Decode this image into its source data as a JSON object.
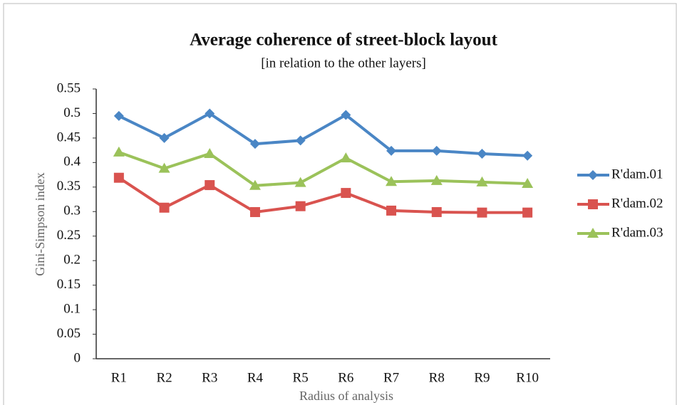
{
  "chart_data": {
    "type": "line",
    "title": "Average coherence of street-block layout",
    "subtitle": "[in relation to the other layers]",
    "x_label": "Radius of analysis",
    "y_label": "Gini-Simpson index",
    "categories": [
      "R1",
      "R2",
      "R3",
      "R4",
      "R5",
      "R6",
      "R7",
      "R8",
      "R9",
      "R10"
    ],
    "series": [
      {
        "name": "R'dam.01",
        "color": "#4a86c5",
        "marker": "diamond",
        "values": [
          0.495,
          0.45,
          0.5,
          0.438,
          0.445,
          0.497,
          0.424,
          0.424,
          0.418,
          0.414
        ]
      },
      {
        "name": "R'dam.02",
        "color": "#d9534f",
        "marker": "square",
        "values": [
          0.369,
          0.308,
          0.354,
          0.299,
          0.311,
          0.338,
          0.302,
          0.299,
          0.298,
          0.298
        ]
      },
      {
        "name": "R'dam.03",
        "color": "#9bc25a",
        "marker": "triangle",
        "values": [
          0.421,
          0.388,
          0.418,
          0.353,
          0.359,
          0.409,
          0.361,
          0.363,
          0.36,
          0.357
        ]
      }
    ],
    "ylim": [
      0,
      0.55
    ],
    "yticks": [
      0,
      0.05,
      0.1,
      0.15,
      0.2,
      0.25,
      0.3,
      0.35,
      0.4,
      0.45,
      0.5,
      0.55
    ],
    "grid": false,
    "legend": "right"
  }
}
